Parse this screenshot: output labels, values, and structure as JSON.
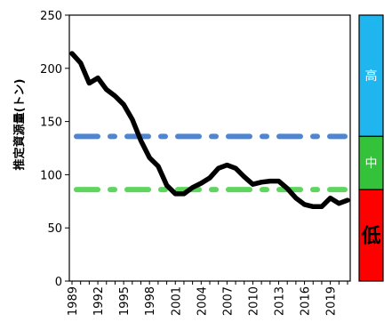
{
  "chart_data": {
    "type": "line",
    "title": "",
    "xlabel": "",
    "ylabel": "推定資源量(トン)",
    "xlim": [
      1989,
      2021
    ],
    "ylim": [
      0,
      250
    ],
    "yticks": [
      0,
      50,
      100,
      150,
      200,
      250
    ],
    "xtick_labels": [
      "1989",
      "1992",
      "1995",
      "1998",
      "2001",
      "2004",
      "2007",
      "2010",
      "2013",
      "2016",
      "2019"
    ],
    "grid": false,
    "series": [
      {
        "color": "#000000",
        "x": [
          1989,
          1990,
          1991,
          1992,
          1993,
          1994,
          1995,
          1996,
          1997,
          1998,
          1999,
          2000,
          2001,
          2002,
          2003,
          2004,
          2005,
          2006,
          2007,
          2008,
          2009,
          2010,
          2011,
          2012,
          2013,
          2014,
          2015,
          2016,
          2017,
          2018,
          2019,
          2020,
          2021
        ],
        "y": [
          214,
          205,
          186,
          191,
          180,
          174,
          166,
          152,
          132,
          116,
          108,
          90,
          82,
          82,
          88,
          92,
          97,
          106,
          109,
          106,
          98,
          91,
          93,
          94,
          94,
          87,
          78,
          72,
          70,
          70,
          78,
          73,
          76
        ]
      }
    ],
    "reference_lines": [
      {
        "y": 136,
        "color": "#4f86d4",
        "style": "dash-dot"
      },
      {
        "y": 86,
        "color": "#5ed65e",
        "style": "dash-dot"
      }
    ],
    "level_bands": [
      {
        "label": "高",
        "from": 136,
        "to": 250,
        "color": "#1fb5ef",
        "text_color": "#ffffff"
      },
      {
        "label": "中",
        "from": 86,
        "to": 136,
        "color": "#33c23a",
        "text_color": "#ffffff"
      },
      {
        "label": "低",
        "from": 0,
        "to": 86,
        "color": "#ff0000",
        "text_color": "#000000"
      }
    ]
  }
}
